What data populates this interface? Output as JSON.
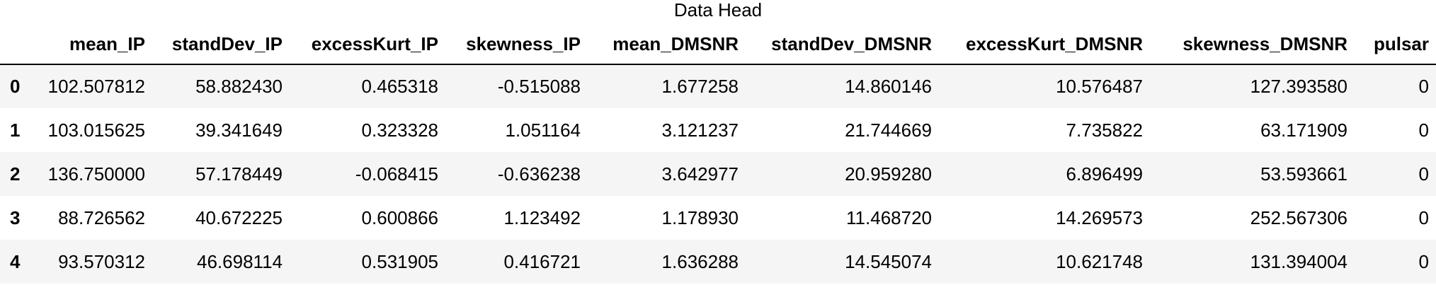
{
  "caption": "Data Head",
  "table": {
    "columns": [
      "mean_IP",
      "standDev_IP",
      "excessKurt_IP",
      "skewness_IP",
      "mean_DMSNR",
      "standDev_DMSNR",
      "excessKurt_DMSNR",
      "skewness_DMSNR",
      "pulsar"
    ],
    "rows": [
      {
        "index": "0",
        "cells": [
          "102.507812",
          "58.882430",
          "0.465318",
          "-0.515088",
          "1.677258",
          "14.860146",
          "10.576487",
          "127.393580",
          "0"
        ]
      },
      {
        "index": "1",
        "cells": [
          "103.015625",
          "39.341649",
          "0.323328",
          "1.051164",
          "3.121237",
          "21.744669",
          "7.735822",
          "63.171909",
          "0"
        ]
      },
      {
        "index": "2",
        "cells": [
          "136.750000",
          "57.178449",
          "-0.068415",
          "-0.636238",
          "3.642977",
          "20.959280",
          "6.896499",
          "53.593661",
          "0"
        ]
      },
      {
        "index": "3",
        "cells": [
          "88.726562",
          "40.672225",
          "0.600866",
          "1.123492",
          "1.178930",
          "11.468720",
          "14.269573",
          "252.567306",
          "0"
        ]
      },
      {
        "index": "4",
        "cells": [
          "93.570312",
          "46.698114",
          "0.531905",
          "0.416721",
          "1.636288",
          "14.545074",
          "10.621748",
          "131.394004",
          "0"
        ]
      }
    ]
  }
}
